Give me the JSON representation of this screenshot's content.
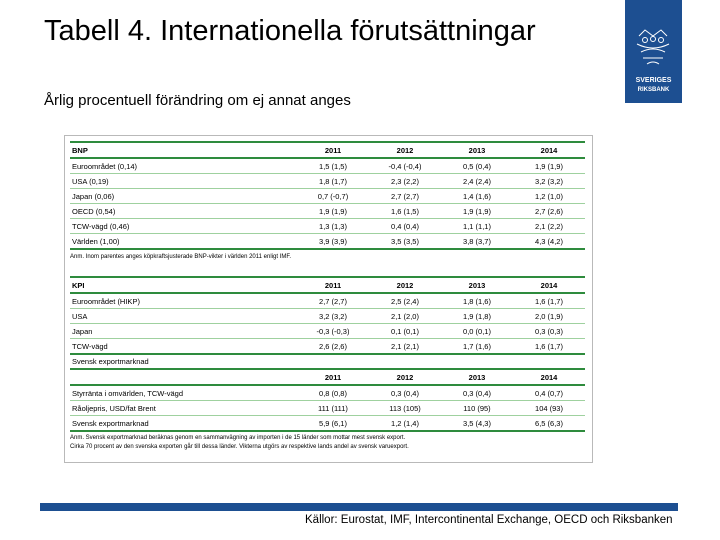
{
  "title": "Tabell 4. Internationella förutsättningar",
  "subtitle": "Årlig procentuell förändring om ej annat anges",
  "logo": {
    "text1": "SVERIGES",
    "text2": "RIKSBANK",
    "color": "#1d4f91"
  },
  "bnp": {
    "headers": [
      "BNP",
      "2011",
      "2012",
      "2013",
      "2014"
    ],
    "rows": [
      [
        "Euroområdet (0,14)",
        "1,5 (1,5)",
        "-0,4 (-0,4)",
        "0,5 (0,4)",
        "1,9 (1,9)"
      ],
      [
        "USA (0,19)",
        "1,8 (1,7)",
        "2,3 (2,2)",
        "2,4 (2,4)",
        "3,2 (3,2)"
      ],
      [
        "Japan (0,06)",
        "0,7 (-0,7)",
        "2,7 (2,7)",
        "1,4 (1,6)",
        "1,2 (1,0)"
      ],
      [
        "OECD (0,54)",
        "1,9 (1,9)",
        "1,6 (1,5)",
        "1,9 (1,9)",
        "2,7 (2,6)"
      ],
      [
        "TCW-vägd (0,46)",
        "1,3 (1,3)",
        "0,4 (0,4)",
        "1,1 (1,1)",
        "2,1 (2,2)"
      ],
      [
        "Världen (1,00)",
        "3,9 (3,9)",
        "3,5 (3,5)",
        "3,8 (3,7)",
        "4,3 (4,2)"
      ]
    ],
    "note": "Anm. Inom parentes anges köpkraftsjusterade BNP-vikter i världen 2011 enligt IMF."
  },
  "kpi": {
    "headers": [
      "KPI",
      "2011",
      "2012",
      "2013",
      "2014"
    ],
    "rows": [
      [
        "Euroområdet (HIKP)",
        "2,7 (2,7)",
        "2,5 (2,4)",
        "1,8 (1,6)",
        "1,6 (1,7)"
      ],
      [
        "USA",
        "3,2 (3,2)",
        "2,1 (2,0)",
        "1,9 (1,8)",
        "2,0 (1,9)"
      ],
      [
        "Japan",
        "-0,3 (-0,3)",
        "0,1 (0,1)",
        "0,0 (0,1)",
        "0,3 (0,3)"
      ],
      [
        "TCW-vägd",
        "2,6 (2,6)",
        "2,1 (2,1)",
        "1,7 (1,6)",
        "1,6 (1,7)"
      ]
    ]
  },
  "other": {
    "headers": [
      "",
      "2011",
      "2012",
      "2013",
      "2014"
    ],
    "rows": [
      [
        "Svensk exportmarknad",
        "",
        "",
        "",
        ""
      ],
      [
        "Styrränta i omvärlden, TCW-vägd",
        "0,8 (0,8)",
        "0,3 (0,4)",
        "0,3 (0,4)",
        "0,4 (0,7)"
      ],
      [
        "Råoljepris, USD/fat Brent",
        "111 (111)",
        "113 (105)",
        "110 (95)",
        "104 (93)"
      ],
      [
        "Svensk exportmarknad",
        "5,9 (6,1)",
        "1,2 (1,4)",
        "3,5 (4,3)",
        "6,5 (6,3)"
      ]
    ],
    "note_line1": "Anm. Svensk exportmarknad beräknas genom en sammanvägning av importen i de 15 länder som mottar mest svensk export.",
    "note_line2": "Cirka 70 procent av den svenska exporten går till dessa länder. Vikterna utgörs av respektive lands andel av svensk varuexport."
  },
  "source": "Källor: Eurostat, IMF, Intercontinental Exchange, OECD och Riksbanken"
}
